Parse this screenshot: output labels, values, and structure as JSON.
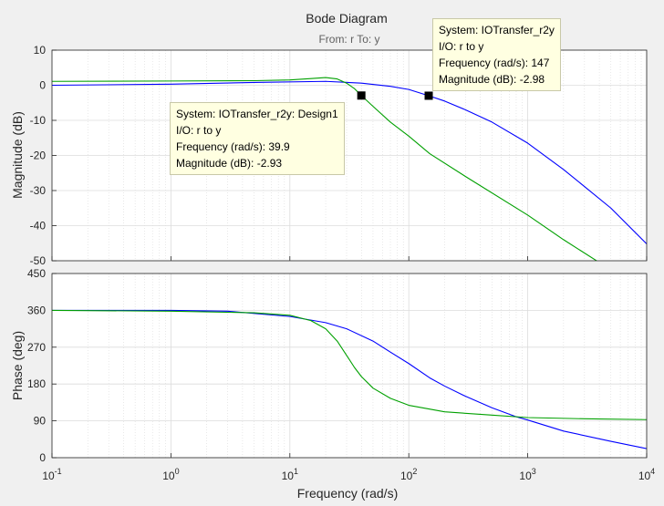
{
  "figure": {
    "title": "Bode Diagram",
    "subtitle": "From: r  To: y",
    "xlabel": "Frequency  (rad/s)"
  },
  "chart_data": [
    {
      "type": "line",
      "name": "magnitude",
      "ylabel": "Magnitude (dB)",
      "xscale": "log",
      "xlim": [
        0.1,
        10000
      ],
      "ylim": [
        -50,
        10
      ],
      "yticks": [
        10,
        0,
        -10,
        -20,
        -30,
        -40,
        -50
      ],
      "grid": true,
      "series": [
        {
          "name": "IOTransfer_r2y",
          "color": "#0000ff",
          "points": [
            [
              0.1,
              0.0
            ],
            [
              1,
              0.3
            ],
            [
              5,
              0.8
            ],
            [
              20,
              1.1
            ],
            [
              40,
              0.6
            ],
            [
              70,
              -0.3
            ],
            [
              100,
              -1.2
            ],
            [
              147,
              -2.98
            ],
            [
              200,
              -4.5
            ],
            [
              300,
              -7.0
            ],
            [
              500,
              -10.5
            ],
            [
              1000,
              -16.5
            ],
            [
              2000,
              -24.0
            ],
            [
              5000,
              -35.0
            ],
            [
              10000,
              -45.2
            ]
          ]
        },
        {
          "name": "IOTransfer_r2y: Design1",
          "color": "#00a000",
          "points": [
            [
              0.1,
              1.1
            ],
            [
              1,
              1.2
            ],
            [
              5,
              1.3
            ],
            [
              10,
              1.5
            ],
            [
              15,
              1.9
            ],
            [
              20,
              2.2
            ],
            [
              25,
              1.8
            ],
            [
              30,
              0.6
            ],
            [
              35,
              -1.0
            ],
            [
              39.9,
              -2.93
            ],
            [
              50,
              -6.0
            ],
            [
              70,
              -10.5
            ],
            [
              100,
              -14.5
            ],
            [
              150,
              -19.5
            ],
            [
              300,
              -26.0
            ],
            [
              1000,
              -37.0
            ],
            [
              2000,
              -44.0
            ],
            [
              4000,
              -50.5
            ]
          ]
        }
      ],
      "markers": [
        {
          "x": 39.9,
          "y": -2.93
        },
        {
          "x": 147,
          "y": -2.98
        }
      ]
    },
    {
      "type": "line",
      "name": "phase",
      "ylabel": "Phase (deg)",
      "xscale": "log",
      "xlim": [
        0.1,
        10000
      ],
      "ylim": [
        0,
        450
      ],
      "yticks": [
        450,
        360,
        270,
        180,
        90,
        0
      ],
      "xticks": [
        "10",
        "10",
        "10",
        "10",
        "10",
        "10"
      ],
      "xtick_exponents": [
        "-1",
        "0",
        "1",
        "2",
        "3",
        "4"
      ],
      "grid": true,
      "series": [
        {
          "name": "IOTransfer_r2y",
          "color": "#0000ff",
          "points": [
            [
              0.1,
              360
            ],
            [
              1,
              360
            ],
            [
              3,
              358
            ],
            [
              10,
              345
            ],
            [
              20,
              330
            ],
            [
              30,
              315
            ],
            [
              50,
              285
            ],
            [
              70,
              258
            ],
            [
              100,
              230
            ],
            [
              150,
              195
            ],
            [
              200,
              175
            ],
            [
              300,
              150
            ],
            [
              500,
              122
            ],
            [
              800,
              100
            ],
            [
              1000,
              92
            ],
            [
              2000,
              65
            ],
            [
              5000,
              40
            ],
            [
              10000,
              22
            ]
          ]
        },
        {
          "name": "IOTransfer_r2y: Design1",
          "color": "#00a000",
          "points": [
            [
              0.1,
              360
            ],
            [
              1,
              358
            ],
            [
              5,
              354
            ],
            [
              10,
              348
            ],
            [
              15,
              335
            ],
            [
              20,
              315
            ],
            [
              25,
              285
            ],
            [
              30,
              250
            ],
            [
              35,
              220
            ],
            [
              40,
              198
            ],
            [
              50,
              170
            ],
            [
              70,
              145
            ],
            [
              100,
              128
            ],
            [
              200,
              112
            ],
            [
              500,
              104
            ],
            [
              1000,
              98
            ],
            [
              3000,
              95
            ],
            [
              10000,
              93
            ]
          ]
        }
      ]
    }
  ],
  "tooltips": [
    {
      "system": "System: IOTransfer_r2y: Design1",
      "io": "I/O: r to y",
      "frequency": "Frequency (rad/s): 39.9",
      "magnitude": "Magnitude (dB): -2.93"
    },
    {
      "system": "System: IOTransfer_r2y",
      "io": "I/O: r to y",
      "frequency": "Frequency (rad/s): 147",
      "magnitude": "Magnitude (dB): -2.98"
    }
  ]
}
